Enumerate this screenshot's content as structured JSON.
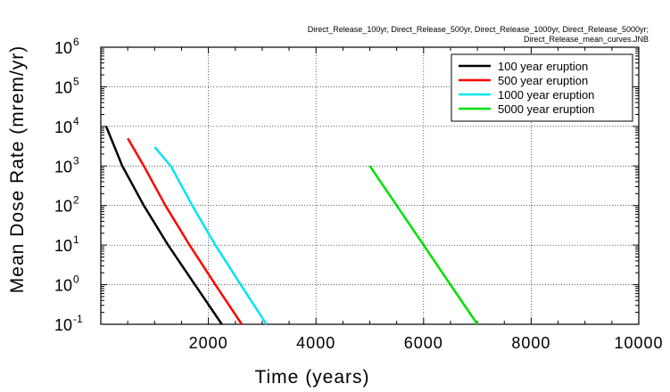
{
  "caption": {
    "line1": "Direct_Release_100yr, Direct_Release_500yr, Direct_Release_1000yr, Direct_Release_5000yr;",
    "line2": "Direct_Release_mean_curves.JNB"
  },
  "chart_data": {
    "type": "line",
    "title": "",
    "xlabel": "Time (years)",
    "ylabel": "Mean Dose Rate (mrem/yr)",
    "xlim": [
      0,
      10000
    ],
    "ylim_log10": [
      -1,
      6
    ],
    "yscale": "log",
    "grid": true,
    "legend_position": "top-right",
    "x_ticks": [
      "2000",
      "4000",
      "6000",
      "8000",
      "10000"
    ],
    "x_tick_values": [
      2000,
      4000,
      6000,
      8000,
      10000
    ],
    "y_ticks": [
      {
        "base": "10",
        "exp": "-1"
      },
      {
        "base": "10",
        "exp": "0"
      },
      {
        "base": "10",
        "exp": "1"
      },
      {
        "base": "10",
        "exp": "2"
      },
      {
        "base": "10",
        "exp": "3"
      },
      {
        "base": "10",
        "exp": "4"
      },
      {
        "base": "10",
        "exp": "5"
      },
      {
        "base": "10",
        "exp": "6"
      }
    ],
    "y_tick_exponents": [
      -1,
      0,
      1,
      2,
      3,
      4,
      5,
      6
    ],
    "series": [
      {
        "name": "100 year eruption",
        "color": "#000000",
        "points": [
          [
            100,
            10000
          ],
          [
            400,
            1000
          ],
          [
            800,
            100
          ],
          [
            1250,
            10
          ],
          [
            1750,
            1
          ],
          [
            2250,
            0.1
          ]
        ]
      },
      {
        "name": "500 year eruption",
        "color": "#ff0000",
        "points": [
          [
            500,
            5000
          ],
          [
            800,
            1000
          ],
          [
            1200,
            100
          ],
          [
            1650,
            10
          ],
          [
            2130,
            1
          ],
          [
            2620,
            0.1
          ]
        ]
      },
      {
        "name": "1000 year eruption",
        "color": "#00e5ee",
        "points": [
          [
            1000,
            3000
          ],
          [
            1300,
            1000
          ],
          [
            1700,
            100
          ],
          [
            2130,
            10
          ],
          [
            2600,
            1
          ],
          [
            3080,
            0.1
          ]
        ]
      },
      {
        "name": "5000 year eruption",
        "color": "#00e000",
        "points": [
          [
            5000,
            1000
          ],
          [
            5500,
            100
          ],
          [
            6000,
            10
          ],
          [
            6500,
            1
          ],
          [
            7000,
            0.1
          ]
        ]
      }
    ]
  }
}
